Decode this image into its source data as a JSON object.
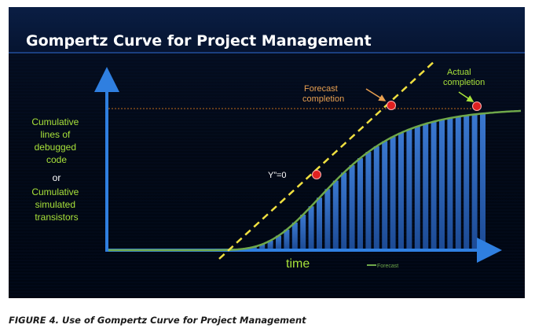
{
  "slide": {
    "title": "Gompertz Curve for Project Management",
    "y_axis_label_lines_top": [
      "Cumulative",
      "lines of",
      "debugged",
      "code"
    ],
    "y_axis_label_or": "or",
    "y_axis_label_lines_bottom": [
      "Cumulative",
      "simulated",
      "transistors"
    ],
    "x_axis_label": "time",
    "legend_label": "Forecast",
    "annotations": {
      "forecast_completion": [
        "Forecast",
        "completion"
      ],
      "actual_completion": [
        "Actual",
        "completion"
      ],
      "inflection": "Y”=0"
    }
  },
  "caption": "FIGURE 4. Use of Gompertz Curve for Project Management",
  "colors": {
    "background": "#000814",
    "title_bar": "#081a3c",
    "axis": "#2f7fe0",
    "curve": "#6fa84a",
    "bars": "#2a5fb0",
    "tangent": "#f0e040",
    "markers": "#e02020",
    "label_green": "#a8e23a",
    "label_orange": "#e8a050"
  }
}
